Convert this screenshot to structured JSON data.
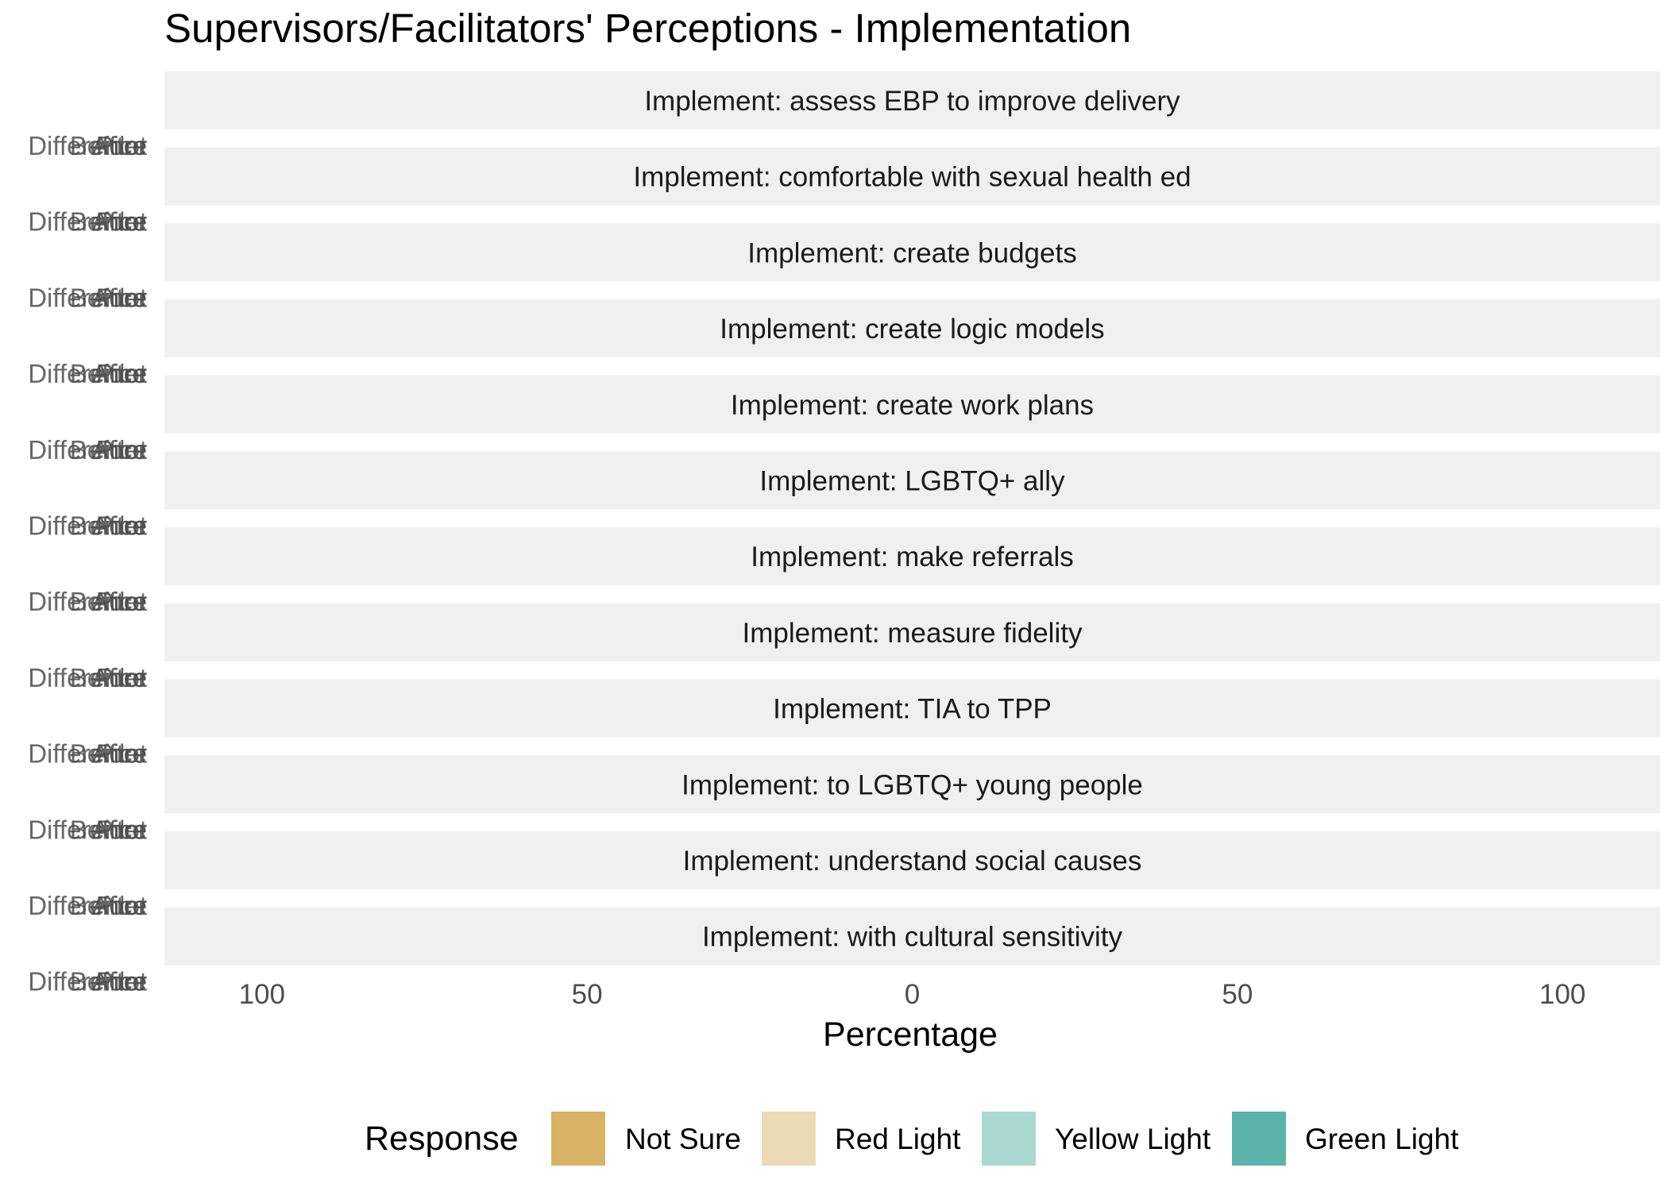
{
  "chart_data": {
    "type": "bar",
    "orientation": "horizontal-diverging",
    "title": "Supervisors/Facilitators' Perceptions - Implementation",
    "xlabel": "Percentage",
    "ylabel": "",
    "xlim": [
      -115,
      115
    ],
    "x_ticks": [
      -100,
      -50,
      0,
      50,
      100
    ],
    "x_tick_labels": [
      "100",
      "50",
      "0",
      "50",
      "100"
    ],
    "grid": false,
    "facets": [
      "Implement: assess EBP to improve delivery",
      "Implement: comfortable with sexual health ed",
      "Implement: create budgets",
      "Implement: create logic models",
      "Implement: create work plans",
      "Implement: LGBTQ+ ally",
      "Implement: make referrals",
      "Implement: measure fidelity",
      "Implement: TIA to TPP",
      "Implement: to LGBTQ+ young people",
      "Implement: understand social causes",
      "Implement: with cultural sensitivity"
    ],
    "y_categories_overlapping": [
      "Before",
      "After",
      "Difference",
      "Pilot"
    ],
    "legend": {
      "title": "Response",
      "placement": "bottom",
      "entries": [
        {
          "name": "Not Sure",
          "color": "#d8b365"
        },
        {
          "name": "Red Light",
          "color": "#ebdbb4"
        },
        {
          "name": "Yellow Light",
          "color": "#a9d9d1"
        },
        {
          "name": "Green Light",
          "color": "#5ab4ac"
        }
      ]
    },
    "series": []
  },
  "colors": {
    "strip_background": "#f0f0f0",
    "text_dark": "#1a1a1a",
    "tick_gray": "#4d4d4d"
  }
}
